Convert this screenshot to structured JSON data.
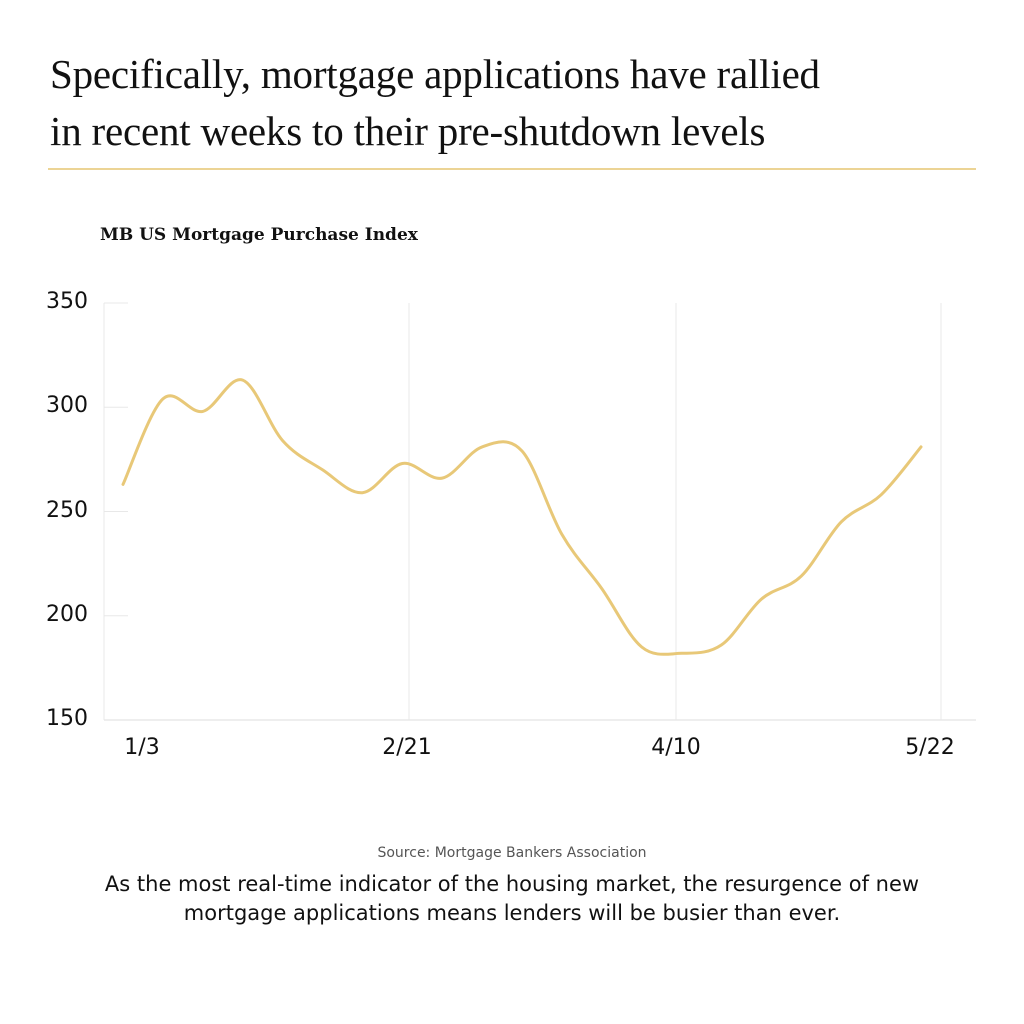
{
  "headline": {
    "line1": "Specifically, mortgage applications have rallied",
    "line2": "in recent weeks to their pre-shutdown levels"
  },
  "colors": {
    "accent_rule": "#ecd495",
    "line": "#e8c878",
    "grid": "#e8e8e8",
    "text": "#111111"
  },
  "chart_data": {
    "type": "line",
    "title": "MB US Mortgage Purchase Index",
    "xlabel": "",
    "ylabel": "",
    "ylim": [
      150,
      350
    ],
    "yticks": [
      "350",
      "300",
      "250",
      "200",
      "150"
    ],
    "xticks": [
      "1/3",
      "2/21",
      "4/10",
      "5/22"
    ],
    "grid": "vertical lines at x ticks, short stubs at y ticks",
    "legend": "none",
    "series": [
      {
        "name": "MB US Mortgage Purchase Index",
        "values": [
          263,
          304,
          298,
          313,
          284,
          270,
          259,
          273,
          266,
          281,
          279,
          239,
          213,
          185,
          182,
          186,
          208,
          219,
          245,
          258,
          281
        ]
      }
    ],
    "source": "Source: Mortgage Bankers Association"
  },
  "caption": "As the most real-time indicator of the housing market, the resurgence of new mortgage applications means lenders will be busier than ever."
}
